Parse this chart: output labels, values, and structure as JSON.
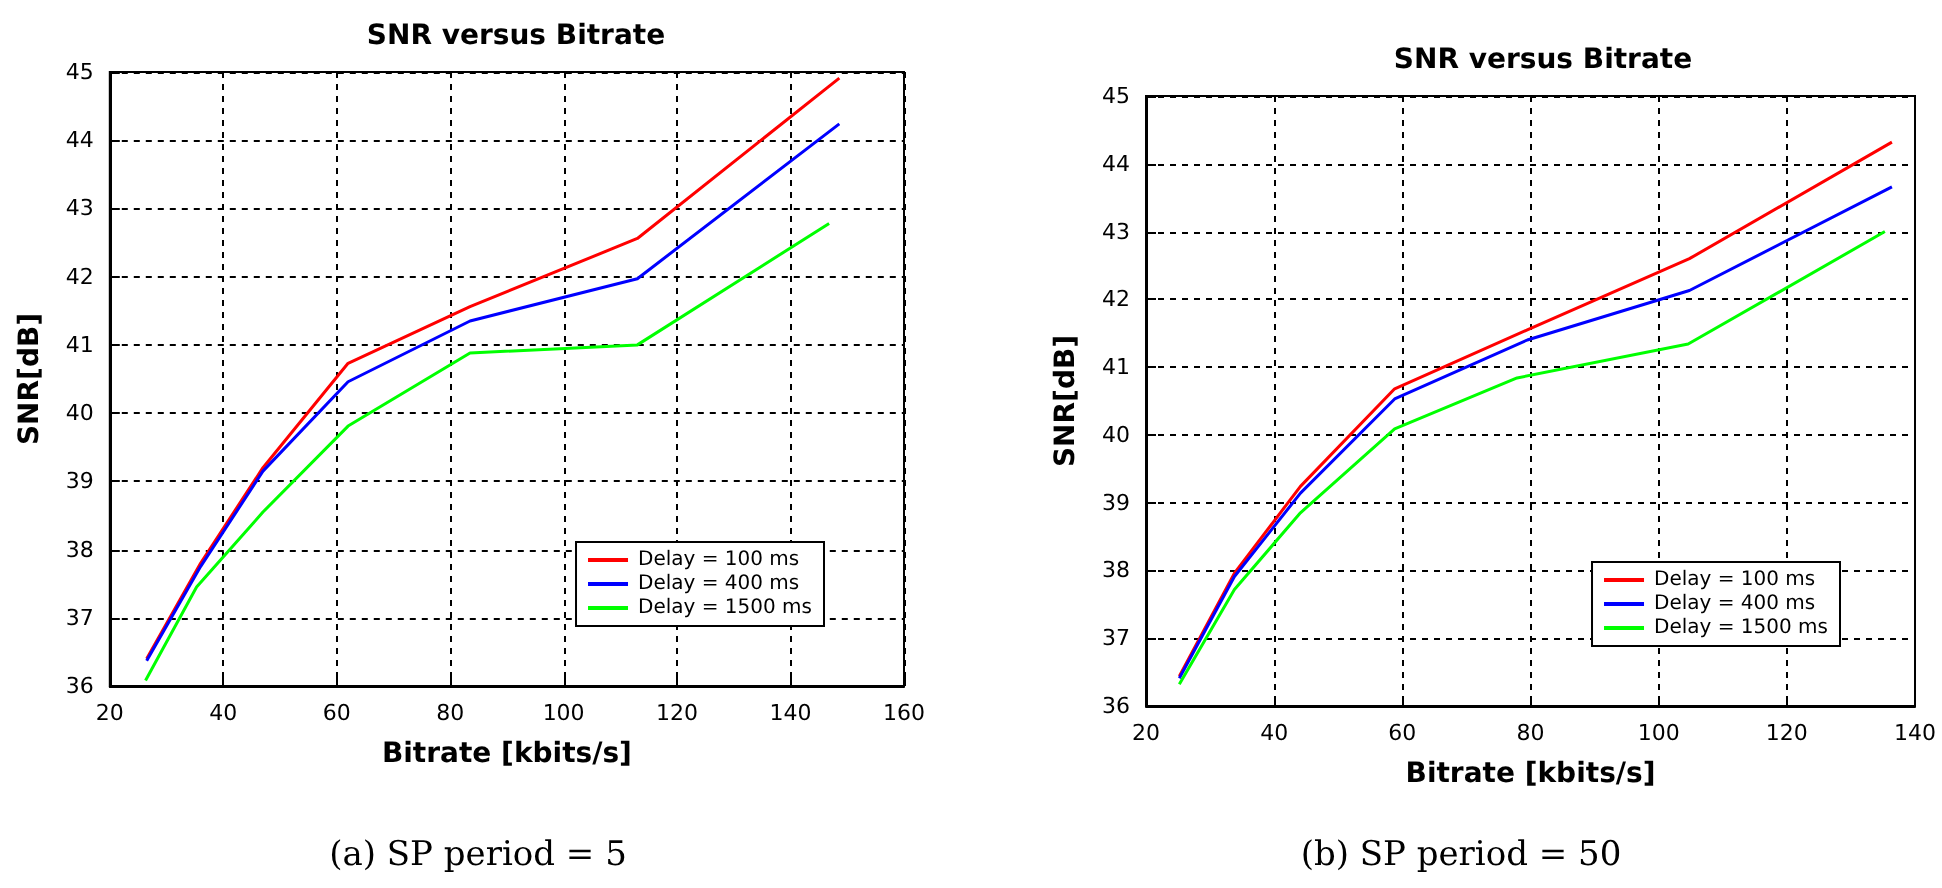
{
  "chart_data": [
    {
      "type": "line",
      "title": "SNR versus Bitrate",
      "xlabel": "Bitrate [kbits/s]",
      "ylabel": "SNR[dB]",
      "annotations": [
        "(a) SP period = 5"
      ],
      "xlim": [
        20,
        160
      ],
      "xticks": [
        20,
        40,
        60,
        80,
        100,
        120,
        140,
        160
      ],
      "ylim": [
        36,
        45
      ],
      "yticks": [
        36,
        37,
        38,
        39,
        40,
        41,
        42,
        43,
        44,
        45
      ],
      "grid": true,
      "legend": "bottom right",
      "marker": "none",
      "line_style": "solid",
      "series": [
        {
          "name": "Delay = 100 ms",
          "color": "#ff0000",
          "x": [
            26.5,
            36,
            47,
            62,
            83.5,
            113,
            148.6
          ],
          "values": [
            36.4,
            37.8,
            39.2,
            40.73,
            41.56,
            42.56,
            44.91
          ]
        },
        {
          "name": "Delay = 400 ms",
          "color": "#0000ff",
          "x": [
            26.5,
            36,
            47,
            62,
            83.5,
            113,
            148.6
          ],
          "values": [
            36.37,
            37.75,
            39.15,
            40.46,
            41.35,
            41.97,
            44.24
          ]
        },
        {
          "name": "Delay = 1500 ms",
          "color": "#00ff00",
          "x": [
            26.3,
            35.3,
            47,
            62,
            83.5,
            113,
            146.8
          ],
          "values": [
            36.08,
            37.45,
            38.55,
            39.81,
            40.88,
            41.0,
            42.78
          ]
        }
      ]
    },
    {
      "type": "line",
      "title": "SNR versus Bitrate",
      "xlabel": "Bitrate [kbits/s]",
      "ylabel": "SNR[dB]",
      "annotations": [
        "(b) SP period = 50"
      ],
      "xlim": [
        20,
        140
      ],
      "xticks": [
        20,
        40,
        60,
        80,
        100,
        120,
        140
      ],
      "ylim": [
        36,
        45
      ],
      "yticks": [
        36,
        37,
        38,
        39,
        40,
        41,
        42,
        43,
        44,
        45
      ],
      "grid": true,
      "legend": "bottom right",
      "marker": "none",
      "line_style": "solid",
      "series": [
        {
          "name": "Delay = 100 ms",
          "color": "#ff0000",
          "x": [
            25.2,
            33.8,
            44.1,
            58.8,
            79.5,
            104.8,
            136.4
          ],
          "values": [
            36.44,
            37.96,
            39.24,
            40.68,
            41.55,
            42.6,
            44.32
          ]
        },
        {
          "name": "Delay = 400 ms",
          "color": "#0000ff",
          "x": [
            25.2,
            33.8,
            44.1,
            58.8,
            79.5,
            104.8,
            136.4
          ],
          "values": [
            36.41,
            37.91,
            39.14,
            40.53,
            41.4,
            42.13,
            43.66
          ]
        },
        {
          "name": "Delay = 1500 ms",
          "color": "#00ff00",
          "x": [
            25.2,
            33.8,
            44.1,
            58.8,
            77.9,
            104.6,
            135.3
          ],
          "values": [
            36.32,
            37.72,
            38.85,
            40.09,
            40.84,
            41.34,
            43.0
          ]
        }
      ]
    }
  ]
}
